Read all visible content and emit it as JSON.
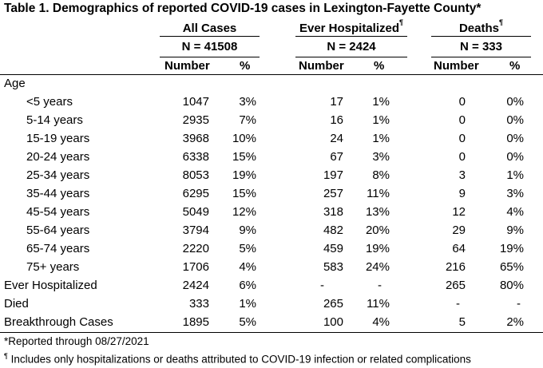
{
  "title": "Table 1. Demographics of reported COVID-19 cases in Lexington-Fayette County*",
  "groups": {
    "all": {
      "label": "All Cases",
      "n": "N =  41508"
    },
    "hosp": {
      "label": "Ever Hospitalized",
      "mark": "¶",
      "n": "N =  2424"
    },
    "deaths": {
      "label": "Deaths",
      "mark": "¶",
      "n": "N =  333"
    }
  },
  "subheaders": {
    "number": "Number",
    "percent": "%"
  },
  "section_age": "Age",
  "rows": [
    {
      "label": "<5 years",
      "v": [
        "1047",
        "3%",
        "17",
        "1%",
        "0",
        "0%"
      ]
    },
    {
      "label": "5-14 years",
      "v": [
        "2935",
        "7%",
        "16",
        "1%",
        "0",
        "0%"
      ]
    },
    {
      "label": "15-19 years",
      "v": [
        "3968",
        "10%",
        "24",
        "1%",
        "0",
        "0%"
      ]
    },
    {
      "label": "20-24 years",
      "v": [
        "6338",
        "15%",
        "67",
        "3%",
        "0",
        "0%"
      ]
    },
    {
      "label": "25-34 years",
      "v": [
        "8053",
        "19%",
        "197",
        "8%",
        "3",
        "1%"
      ]
    },
    {
      "label": "35-44 years",
      "v": [
        "6295",
        "15%",
        "257",
        "11%",
        "9",
        "3%"
      ]
    },
    {
      "label": "45-54 years",
      "v": [
        "5049",
        "12%",
        "318",
        "13%",
        "12",
        "4%"
      ]
    },
    {
      "label": "55-64 years",
      "v": [
        "3794",
        "9%",
        "482",
        "20%",
        "29",
        "9%"
      ]
    },
    {
      "label": "65-74 years",
      "v": [
        "2220",
        "5%",
        "459",
        "19%",
        "64",
        "19%"
      ]
    },
    {
      "label": "75+ years",
      "v": [
        "1706",
        "4%",
        "583",
        "24%",
        "216",
        "65%"
      ]
    }
  ],
  "summary_rows": [
    {
      "label": "Ever Hospitalized",
      "v": [
        "2424",
        "6%",
        "-",
        "-",
        "265",
        "80%"
      ]
    },
    {
      "label": "Died",
      "v": [
        "333",
        "1%",
        "265",
        "11%",
        "-",
        "-"
      ]
    },
    {
      "label": "Breakthrough Cases",
      "v": [
        "1895",
        "5%",
        "100",
        "4%",
        "5",
        "2%"
      ]
    }
  ],
  "footnotes": {
    "reported": "*Reported through 08/27/2021",
    "mark": "¶",
    "includes": " Includes only hospitalizations or deaths attributed to COVID-19 infection or related complications"
  }
}
